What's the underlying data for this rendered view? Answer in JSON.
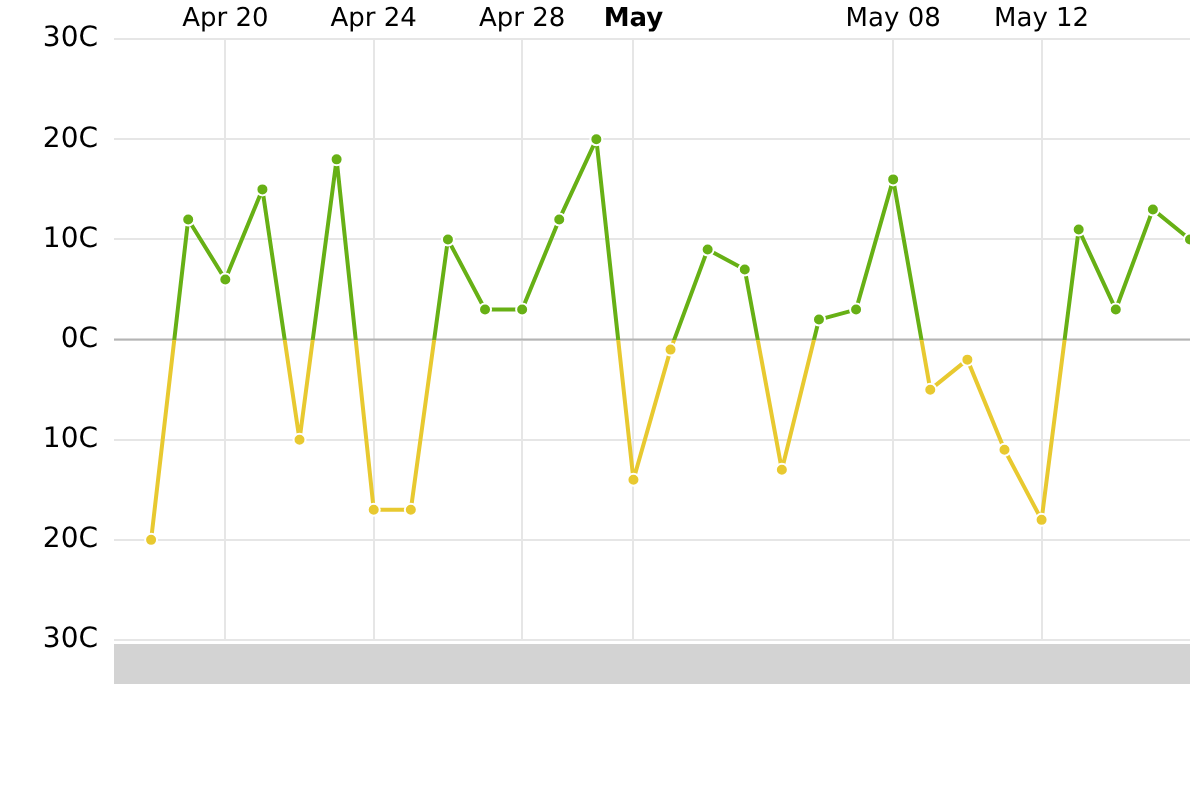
{
  "chart_data": {
    "type": "line",
    "x": [
      "--04-18",
      "--04-19",
      "--04-20",
      "--04-21",
      "--04-22",
      "--04-23",
      "--04-24",
      "--04-25",
      "--04-26",
      "--04-27",
      "--04-28",
      "--04-29",
      "--04-30",
      "--05-01",
      "--05-02",
      "--05-03",
      "--05-04",
      "--05-05",
      "--05-06",
      "--05-07",
      "--05-08",
      "--05-09",
      "--05-10",
      "--05-11",
      "--05-12",
      "--05-13",
      "--05-14",
      "--05-15",
      "--05-16"
    ],
    "series": [
      {
        "color": "#67b015",
        "values": [
          -20,
          12,
          6,
          15,
          -10,
          18,
          -17,
          -17,
          10,
          3,
          3,
          12,
          20,
          -14,
          -1,
          9,
          7,
          -13,
          2,
          3,
          16,
          -5,
          -2,
          -11,
          -18,
          11,
          3,
          13,
          10
        ],
        "colors": [
          "#e8c930",
          "#67b015",
          "#67b015",
          "#67b015",
          "#e8c930",
          "#67b015",
          "#e8c930",
          "#e8c930",
          "#67b015",
          "#67b015",
          "#67b015",
          "#67b015",
          "#67b015",
          "#e8c930",
          "#e8c930",
          "#67b015",
          "#67b015",
          "#e8c930",
          "#67b015",
          "#67b015",
          "#67b015",
          "#e8c930",
          "#e8c930",
          "#e8c930",
          "#e8c930",
          "#67b015",
          "#67b015",
          "#67b015",
          "#67b015"
        ]
      }
    ],
    "xlim": [
      "--04-17",
      "--05-16"
    ],
    "xticks": [
      {
        "value": "--04-20",
        "label": "Apr 20"
      },
      {
        "value": "--04-24",
        "label": "Apr 24"
      },
      {
        "value": "--04-28",
        "label": "Apr 28"
      },
      {
        "value": "--05-01",
        "label": "May"
      },
      {
        "value": "--05-08",
        "label": "May 08"
      },
      {
        "value": "--05-12",
        "label": "May 12"
      }
    ],
    "ylim": [
      -30,
      30
    ],
    "yticks": [
      {
        "value": -30,
        "label": "30C"
      },
      {
        "value": -20,
        "label": "20C"
      },
      {
        "value": -10,
        "label": "10C"
      },
      {
        "value": 0,
        "label": "0C"
      },
      {
        "value": 10,
        "label": "10C"
      },
      {
        "value": 20,
        "label": "20C"
      },
      {
        "value": 30,
        "label": "30C"
      }
    ],
    "ref_lines": [
      {
        "axis": "y",
        "value": 0,
        "color": "#b4b4b4"
      }
    ],
    "grid": true,
    "marker": "circle",
    "line_style": "solid"
  }
}
